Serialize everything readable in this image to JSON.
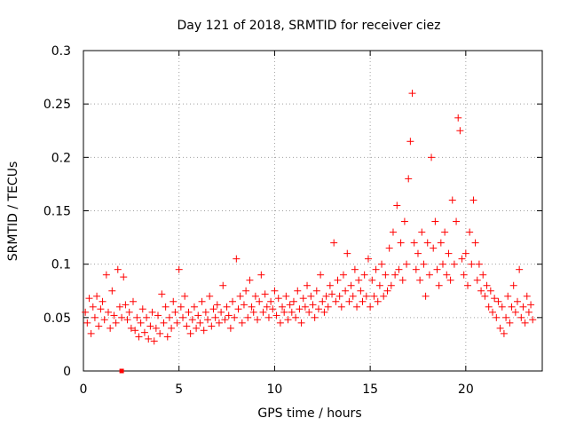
{
  "chart_data": {
    "type": "scatter",
    "title": "Day 121 of 2018, SRMTID for receiver ciez",
    "xlabel": "GPS time / hours",
    "ylabel": "SRMTID / TECUs",
    "xlim": [
      0,
      24
    ],
    "ylim": [
      0,
      0.3
    ],
    "xticks": [
      0,
      5,
      10,
      15,
      20
    ],
    "xtick_labels": [
      "0",
      "5",
      "10",
      "15",
      "20"
    ],
    "yticks": [
      0,
      0.05,
      0.1,
      0.15,
      0.2,
      0.25,
      0.3
    ],
    "ytick_labels": [
      "0",
      "0.05",
      "0.1",
      "0.15",
      "0.2",
      "0.25",
      "0.3"
    ],
    "grid": true,
    "marker": "+",
    "color": "#ff0000",
    "series": [
      {
        "name": "SRMTID",
        "points": [
          [
            0.1,
            0.055
          ],
          [
            0.2,
            0.045
          ],
          [
            0.3,
            0.068
          ],
          [
            0.4,
            0.035
          ],
          [
            0.5,
            0.06
          ],
          [
            0.6,
            0.05
          ],
          [
            0.7,
            0.07
          ],
          [
            0.8,
            0.042
          ],
          [
            0.9,
            0.058
          ],
          [
            1.0,
            0.065
          ],
          [
            1.1,
            0.048
          ],
          [
            1.2,
            0.09
          ],
          [
            1.3,
            0.055
          ],
          [
            1.4,
            0.04
          ],
          [
            1.5,
            0.075
          ],
          [
            1.6,
            0.052
          ],
          [
            1.7,
            0.045
          ],
          [
            1.8,
            0.095
          ],
          [
            1.9,
            0.06
          ],
          [
            2.0,
            0.05
          ],
          [
            2.1,
            0.088
          ],
          [
            2.2,
            0.062
          ],
          [
            2.3,
            0.048
          ],
          [
            2.4,
            0.055
          ],
          [
            2.5,
            0.04
          ],
          [
            2.6,
            0.065
          ],
          [
            2.7,
            0.038
          ],
          [
            2.8,
            0.05
          ],
          [
            2.9,
            0.032
          ],
          [
            3.0,
            0.045
          ],
          [
            3.1,
            0.058
          ],
          [
            3.2,
            0.036
          ],
          [
            3.3,
            0.05
          ],
          [
            3.4,
            0.03
          ],
          [
            3.5,
            0.042
          ],
          [
            3.6,
            0.055
          ],
          [
            3.7,
            0.028
          ],
          [
            3.8,
            0.04
          ],
          [
            3.9,
            0.052
          ],
          [
            4.0,
            0.035
          ],
          [
            4.1,
            0.072
          ],
          [
            4.2,
            0.045
          ],
          [
            4.3,
            0.06
          ],
          [
            4.4,
            0.032
          ],
          [
            4.5,
            0.05
          ],
          [
            4.6,
            0.04
          ],
          [
            4.7,
            0.065
          ],
          [
            4.8,
            0.055
          ],
          [
            4.9,
            0.045
          ],
          [
            5.0,
            0.095
          ],
          [
            5.1,
            0.06
          ],
          [
            5.2,
            0.05
          ],
          [
            5.3,
            0.07
          ],
          [
            5.4,
            0.042
          ],
          [
            5.5,
            0.055
          ],
          [
            5.6,
            0.035
          ],
          [
            5.7,
            0.048
          ],
          [
            5.8,
            0.06
          ],
          [
            5.9,
            0.04
          ],
          [
            6.0,
            0.052
          ],
          [
            6.1,
            0.045
          ],
          [
            6.2,
            0.065
          ],
          [
            6.3,
            0.038
          ],
          [
            6.4,
            0.055
          ],
          [
            6.5,
            0.048
          ],
          [
            6.6,
            0.07
          ],
          [
            6.7,
            0.042
          ],
          [
            6.8,
            0.058
          ],
          [
            6.9,
            0.05
          ],
          [
            7.0,
            0.062
          ],
          [
            7.1,
            0.045
          ],
          [
            7.2,
            0.055
          ],
          [
            7.3,
            0.08
          ],
          [
            7.4,
            0.048
          ],
          [
            7.5,
            0.06
          ],
          [
            7.6,
            0.052
          ],
          [
            7.7,
            0.04
          ],
          [
            7.8,
            0.065
          ],
          [
            7.9,
            0.05
          ],
          [
            8.0,
            0.105
          ],
          [
            8.1,
            0.058
          ],
          [
            8.2,
            0.07
          ],
          [
            8.3,
            0.045
          ],
          [
            8.4,
            0.062
          ],
          [
            8.5,
            0.075
          ],
          [
            8.6,
            0.05
          ],
          [
            8.7,
            0.085
          ],
          [
            8.8,
            0.06
          ],
          [
            8.9,
            0.055
          ],
          [
            9.0,
            0.07
          ],
          [
            9.1,
            0.048
          ],
          [
            9.2,
            0.065
          ],
          [
            9.3,
            0.09
          ],
          [
            9.4,
            0.055
          ],
          [
            9.5,
            0.072
          ],
          [
            9.6,
            0.06
          ],
          [
            9.7,
            0.05
          ],
          [
            9.8,
            0.065
          ],
          [
            9.9,
            0.058
          ],
          [
            10.0,
            0.075
          ],
          [
            10.1,
            0.052
          ],
          [
            10.2,
            0.068
          ],
          [
            10.3,
            0.045
          ],
          [
            10.4,
            0.06
          ],
          [
            10.5,
            0.055
          ],
          [
            10.6,
            0.07
          ],
          [
            10.7,
            0.048
          ],
          [
            10.8,
            0.062
          ],
          [
            10.9,
            0.055
          ],
          [
            11.0,
            0.065
          ],
          [
            11.1,
            0.05
          ],
          [
            11.2,
            0.075
          ],
          [
            11.3,
            0.058
          ],
          [
            11.4,
            0.045
          ],
          [
            11.5,
            0.068
          ],
          [
            11.6,
            0.06
          ],
          [
            11.7,
            0.08
          ],
          [
            11.8,
            0.055
          ],
          [
            11.9,
            0.07
          ],
          [
            12.0,
            0.062
          ],
          [
            12.1,
            0.05
          ],
          [
            12.2,
            0.075
          ],
          [
            12.3,
            0.058
          ],
          [
            12.4,
            0.09
          ],
          [
            12.5,
            0.065
          ],
          [
            12.6,
            0.055
          ],
          [
            12.7,
            0.07
          ],
          [
            12.8,
            0.06
          ],
          [
            12.9,
            0.08
          ],
          [
            13.0,
            0.072
          ],
          [
            13.1,
            0.12
          ],
          [
            13.2,
            0.065
          ],
          [
            13.3,
            0.085
          ],
          [
            13.4,
            0.07
          ],
          [
            13.5,
            0.06
          ],
          [
            13.6,
            0.09
          ],
          [
            13.7,
            0.075
          ],
          [
            13.8,
            0.11
          ],
          [
            13.9,
            0.065
          ],
          [
            14.0,
            0.08
          ],
          [
            14.1,
            0.07
          ],
          [
            14.2,
            0.095
          ],
          [
            14.3,
            0.06
          ],
          [
            14.4,
            0.085
          ],
          [
            14.5,
            0.075
          ],
          [
            14.6,
            0.065
          ],
          [
            14.7,
            0.09
          ],
          [
            14.8,
            0.07
          ],
          [
            14.9,
            0.105
          ],
          [
            15.0,
            0.06
          ],
          [
            15.1,
            0.085
          ],
          [
            15.2,
            0.07
          ],
          [
            15.3,
            0.095
          ],
          [
            15.4,
            0.065
          ],
          [
            15.5,
            0.08
          ],
          [
            15.6,
            0.1
          ],
          [
            15.7,
            0.07
          ],
          [
            15.8,
            0.09
          ],
          [
            15.9,
            0.075
          ],
          [
            16.0,
            0.115
          ],
          [
            16.1,
            0.08
          ],
          [
            16.2,
            0.13
          ],
          [
            16.3,
            0.09
          ],
          [
            16.4,
            0.155
          ],
          [
            16.5,
            0.095
          ],
          [
            16.6,
            0.12
          ],
          [
            16.7,
            0.085
          ],
          [
            16.8,
            0.14
          ],
          [
            16.9,
            0.1
          ],
          [
            17.0,
            0.18
          ],
          [
            17.1,
            0.215
          ],
          [
            17.2,
            0.26
          ],
          [
            17.3,
            0.12
          ],
          [
            17.4,
            0.095
          ],
          [
            17.5,
            0.11
          ],
          [
            17.6,
            0.085
          ],
          [
            17.7,
            0.13
          ],
          [
            17.8,
            0.1
          ],
          [
            17.9,
            0.07
          ],
          [
            18.0,
            0.12
          ],
          [
            18.1,
            0.09
          ],
          [
            18.2,
            0.2
          ],
          [
            18.3,
            0.115
          ],
          [
            18.4,
            0.14
          ],
          [
            18.5,
            0.095
          ],
          [
            18.6,
            0.08
          ],
          [
            18.7,
            0.12
          ],
          [
            18.8,
            0.1
          ],
          [
            18.9,
            0.13
          ],
          [
            19.0,
            0.09
          ],
          [
            19.1,
            0.11
          ],
          [
            19.2,
            0.085
          ],
          [
            19.3,
            0.16
          ],
          [
            19.4,
            0.1
          ],
          [
            19.5,
            0.14
          ],
          [
            19.6,
            0.237
          ],
          [
            19.7,
            0.225
          ],
          [
            19.8,
            0.105
          ],
          [
            19.9,
            0.09
          ],
          [
            20.0,
            0.11
          ],
          [
            20.1,
            0.08
          ],
          [
            20.2,
            0.13
          ],
          [
            20.3,
            0.1
          ],
          [
            20.4,
            0.16
          ],
          [
            20.5,
            0.12
          ],
          [
            20.6,
            0.085
          ],
          [
            20.7,
            0.1
          ],
          [
            20.8,
            0.075
          ],
          [
            20.9,
            0.09
          ],
          [
            21.0,
            0.07
          ],
          [
            21.1,
            0.08
          ],
          [
            21.2,
            0.06
          ],
          [
            21.3,
            0.075
          ],
          [
            21.4,
            0.055
          ],
          [
            21.5,
            0.068
          ],
          [
            21.6,
            0.05
          ],
          [
            21.7,
            0.065
          ],
          [
            21.8,
            0.04
          ],
          [
            21.9,
            0.06
          ],
          [
            22.0,
            0.035
          ],
          [
            22.1,
            0.05
          ],
          [
            22.2,
            0.07
          ],
          [
            22.3,
            0.045
          ],
          [
            22.4,
            0.06
          ],
          [
            22.5,
            0.08
          ],
          [
            22.6,
            0.055
          ],
          [
            22.7,
            0.065
          ],
          [
            22.8,
            0.095
          ],
          [
            22.9,
            0.05
          ],
          [
            23.0,
            0.06
          ],
          [
            23.1,
            0.045
          ],
          [
            23.2,
            0.07
          ],
          [
            23.3,
            0.055
          ],
          [
            23.4,
            0.062
          ],
          [
            23.5,
            0.048
          ]
        ]
      }
    ],
    "special_points": [
      {
        "x": 2.0,
        "y": 0.0,
        "marker": "square"
      }
    ]
  }
}
